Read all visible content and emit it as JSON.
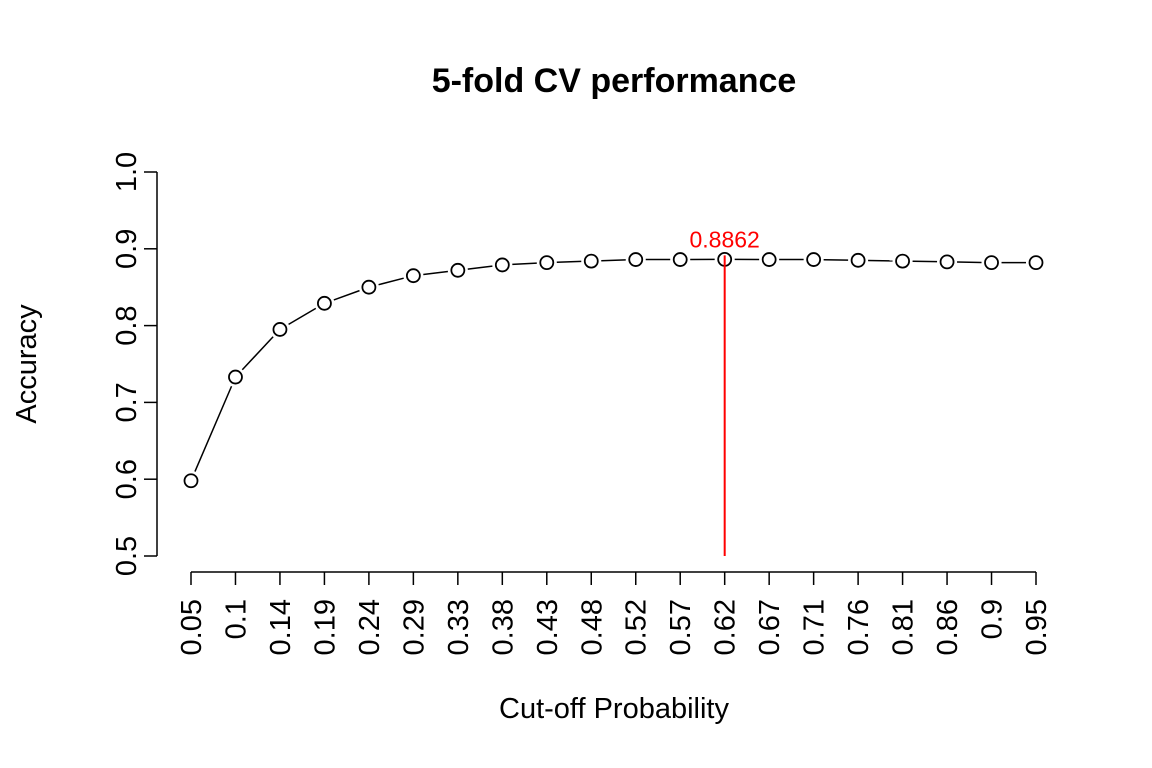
{
  "chart_data": {
    "type": "line",
    "title": "5-fold CV performance",
    "xlabel": "Cut-off Probability",
    "ylabel": "Accuracy",
    "ylim": [
      0.5,
      1.0
    ],
    "y_ticks": [
      "0.5",
      "0.6",
      "0.7",
      "0.8",
      "0.9",
      "1.0"
    ],
    "categories": [
      "0.05",
      "0.1",
      "0.14",
      "0.19",
      "0.24",
      "0.29",
      "0.33",
      "0.38",
      "0.43",
      "0.48",
      "0.52",
      "0.57",
      "0.62",
      "0.67",
      "0.71",
      "0.76",
      "0.81",
      "0.86",
      "0.9",
      "0.95"
    ],
    "values": [
      0.598,
      0.733,
      0.795,
      0.829,
      0.85,
      0.865,
      0.872,
      0.879,
      0.882,
      0.884,
      0.886,
      0.886,
      0.8862,
      0.886,
      0.886,
      0.885,
      0.884,
      0.883,
      0.882,
      0.882
    ],
    "line_style": "both",
    "grid": false,
    "annotation": {
      "category": "0.62",
      "value": 0.8862,
      "label": "0.8862",
      "color": "#ff0000"
    }
  }
}
